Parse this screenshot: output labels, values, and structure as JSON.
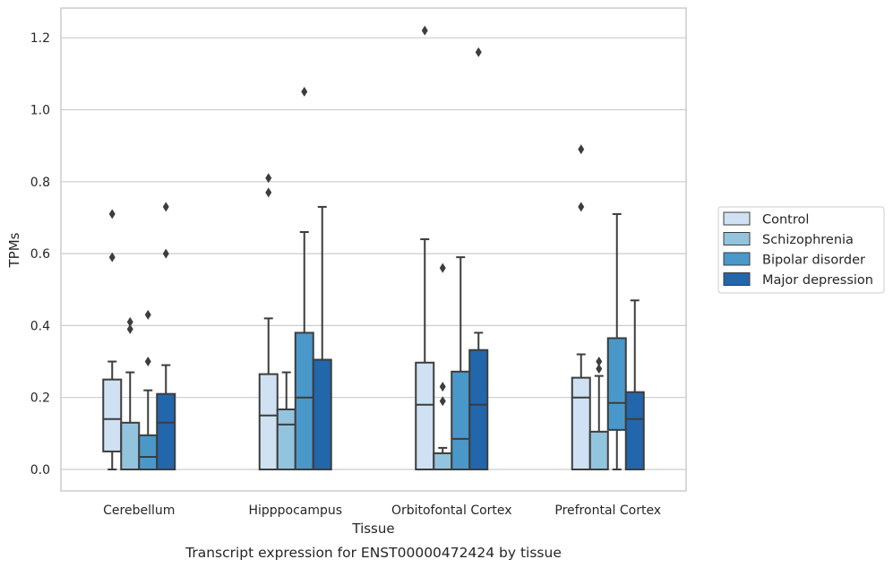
{
  "chart_data": {
    "type": "boxplot",
    "xlabel": "Tissue",
    "ylabel": "TPMs",
    "caption": "Transcript expression for ENST00000472424 by tissue",
    "ylim": [
      -0.06,
      1.28
    ],
    "yticks": [
      "0.0",
      "0.2",
      "0.4",
      "0.6",
      "0.8",
      "1.0",
      "1.2"
    ],
    "grid": true,
    "legend_position": "right",
    "categories": [
      "Cerebellum",
      "Hipppocampus",
      "Orbitofontal Cortex",
      "Prefrontal Cortex"
    ],
    "series": [
      {
        "name": "Control",
        "color": "#cfe1f2",
        "boxes": [
          {
            "q1": 0.05,
            "median": 0.14,
            "q3": 0.25,
            "whisker_low": 0.0,
            "whisker_high": 0.3,
            "outliers": [
              0.71,
              0.59
            ]
          },
          {
            "q1": 0.0,
            "median": 0.15,
            "q3": 0.265,
            "whisker_low": 0.0,
            "whisker_high": 0.42,
            "outliers": [
              0.81,
              0.77
            ]
          },
          {
            "q1": 0.0,
            "median": 0.18,
            "q3": 0.297,
            "whisker_low": 0.0,
            "whisker_high": 0.64,
            "outliers": [
              1.22
            ]
          },
          {
            "q1": 0.0,
            "median": 0.2,
            "q3": 0.255,
            "whisker_low": 0.0,
            "whisker_high": 0.32,
            "outliers": [
              0.89,
              0.73
            ]
          }
        ]
      },
      {
        "name": "Schizophrenia",
        "color": "#93c4de",
        "boxes": [
          {
            "q1": 0.0,
            "median": 0.0,
            "q3": 0.13,
            "whisker_low": 0.0,
            "whisker_high": 0.27,
            "outliers": [
              0.41,
              0.39
            ]
          },
          {
            "q1": 0.0,
            "median": 0.125,
            "q3": 0.167,
            "whisker_low": 0.0,
            "whisker_high": 0.27,
            "outliers": []
          },
          {
            "q1": 0.0,
            "median": 0.0,
            "q3": 0.045,
            "whisker_low": 0.0,
            "whisker_high": 0.06,
            "outliers": [
              0.23,
              0.19,
              0.56
            ]
          },
          {
            "q1": 0.0,
            "median": 0.0,
            "q3": 0.105,
            "whisker_low": 0.0,
            "whisker_high": 0.26,
            "outliers": [
              0.3,
              0.28
            ]
          }
        ]
      },
      {
        "name": "Bipolar disorder",
        "color": "#4a98c9",
        "boxes": [
          {
            "q1": 0.0,
            "median": 0.035,
            "q3": 0.095,
            "whisker_low": 0.0,
            "whisker_high": 0.22,
            "outliers": [
              0.43,
              0.3
            ]
          },
          {
            "q1": 0.0,
            "median": 0.2,
            "q3": 0.38,
            "whisker_low": 0.0,
            "whisker_high": 0.66,
            "outliers": [
              1.05
            ]
          },
          {
            "q1": 0.0,
            "median": 0.085,
            "q3": 0.272,
            "whisker_low": 0.0,
            "whisker_high": 0.59,
            "outliers": []
          },
          {
            "q1": 0.11,
            "median": 0.185,
            "q3": 0.365,
            "whisker_low": 0.0,
            "whisker_high": 0.71,
            "outliers": []
          }
        ]
      },
      {
        "name": "Major depression",
        "color": "#2266ac",
        "boxes": [
          {
            "q1": 0.0,
            "median": 0.13,
            "q3": 0.21,
            "whisker_low": 0.0,
            "whisker_high": 0.29,
            "outliers": [
              0.73,
              0.6
            ]
          },
          {
            "q1": 0.0,
            "median": 0.305,
            "q3": 0.305,
            "whisker_low": 0.0,
            "whisker_high": 0.73,
            "outliers": []
          },
          {
            "q1": 0.0,
            "median": 0.18,
            "q3": 0.332,
            "whisker_low": 0.0,
            "whisker_high": 0.38,
            "outliers": [
              1.16
            ]
          },
          {
            "q1": 0.0,
            "median": 0.14,
            "q3": 0.215,
            "whisker_low": 0.0,
            "whisker_high": 0.47,
            "outliers": []
          }
        ]
      }
    ]
  }
}
